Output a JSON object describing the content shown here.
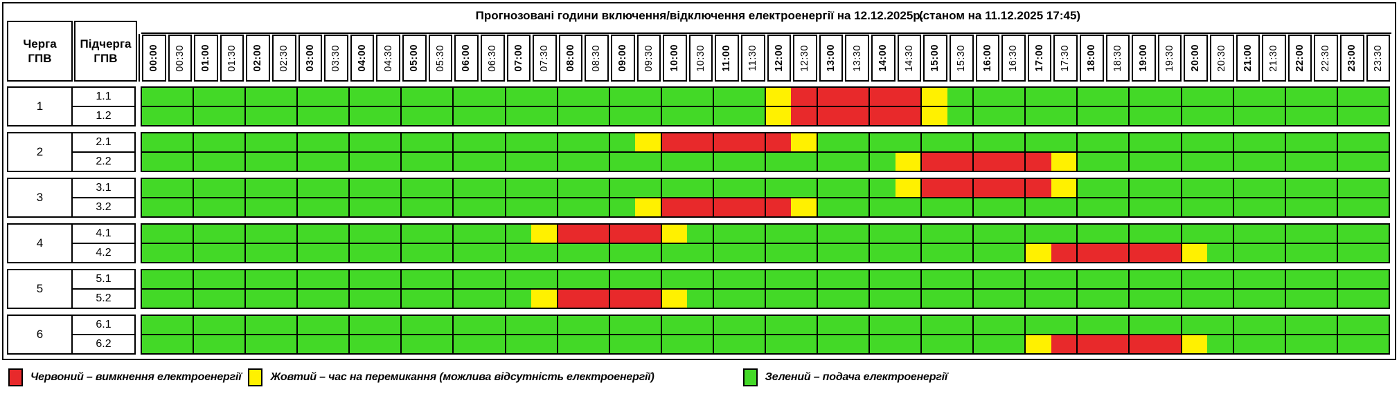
{
  "title": {
    "main": "Прогнозовані години включення/відключення електроенергії на 12.12.2025р.",
    "asof": "(станом на 11.12.2025 17:45)"
  },
  "corner": {
    "queue_header": "Черга\nГПВ",
    "subqueue_header": "Підчерга\nГПВ"
  },
  "colors": {
    "on": "#43D927",
    "switching": "#FFF100",
    "off": "#E8292B"
  },
  "legend": [
    {
      "state": "R",
      "color": "#E8292B",
      "label": "Червоний – вимкнення електроенергії"
    },
    {
      "state": "Y",
      "color": "#FFF100",
      "label": "Жовтий – час на перемикання (можлива відсутність електроенергії)"
    },
    {
      "state": "G",
      "color": "#43D927",
      "label": "Зелений – подача електроенергії"
    }
  ],
  "chart_data": {
    "type": "heatmap",
    "title": "Прогнозовані години включення/відключення електроенергії на 12.12.2025р. (станом на 11.12.2025 17:45)",
    "x": [
      "00:00",
      "00:30",
      "01:00",
      "01:30",
      "02:00",
      "02:30",
      "03:00",
      "03:30",
      "04:00",
      "04:30",
      "05:00",
      "05:30",
      "06:00",
      "06:30",
      "07:00",
      "07:30",
      "08:00",
      "08:30",
      "09:00",
      "09:30",
      "10:00",
      "10:30",
      "11:00",
      "11:30",
      "12:00",
      "12:30",
      "13:00",
      "13:30",
      "14:00",
      "14:30",
      "15:00",
      "15:30",
      "16:00",
      "16:30",
      "17:00",
      "17:30",
      "18:00",
      "18:30",
      "19:00",
      "19:30",
      "20:00",
      "20:30",
      "21:00",
      "21:30",
      "22:00",
      "22:30",
      "23:00",
      "23:30"
    ],
    "state_legend": {
      "G": "подача електроенергії",
      "Y": "час на перемикання (можлива відсутність електроенергії)",
      "R": "вимкнення електроенергії"
    },
    "rows": [
      {
        "queue": "1",
        "subqueue": "1.1",
        "states": "GGGGGGGGGGGGGGGGGGGGGGGGYRRRRRYGGGGGGGGGGGGGGGGG"
      },
      {
        "queue": "1",
        "subqueue": "1.2",
        "states": "GGGGGGGGGGGGGGGGGGGGGGGGYRRRRRYGGGGGGGGGGGGGGGGG"
      },
      {
        "queue": "2",
        "subqueue": "2.1",
        "states": "GGGGGGGGGGGGGGGGGGGYRRRRRYGGGGGGGGGGGGGGGGGGGGGG"
      },
      {
        "queue": "2",
        "subqueue": "2.2",
        "states": "GGGGGGGGGGGGGGGGGGGGGGGGGGGGGYRRRRRYGGGGGGGGGGGG"
      },
      {
        "queue": "3",
        "subqueue": "3.1",
        "states": "GGGGGGGGGGGGGGGGGGGGGGGGGGGGGYRRRRRYGGGGGGGGGGGG"
      },
      {
        "queue": "3",
        "subqueue": "3.2",
        "states": "GGGGGGGGGGGGGGGGGGGYRRRRRYGGGGGGGGGGGGGGGGGGGGGG"
      },
      {
        "queue": "4",
        "subqueue": "4.1",
        "states": "GGGGGGGGGGGGGGGYRRRRYGGGGGGGGGGGGGGGGGGGGGGGGGGG"
      },
      {
        "queue": "4",
        "subqueue": "4.2",
        "states": "GGGGGGGGGGGGGGGGGGGGGGGGGGGGGGGGGGYRRRRRYGGGGGGG"
      },
      {
        "queue": "5",
        "subqueue": "5.1",
        "states": "GGGGGGGGGGGGGGGGGGGGGGGGGGGGGGGGGGGGGGGGGGGGGGGG"
      },
      {
        "queue": "5",
        "subqueue": "5.2",
        "states": "GGGGGGGGGGGGGGGYRRRRYGGGGGGGGGGGGGGGGGGGGGGGGGGG"
      },
      {
        "queue": "6",
        "subqueue": "6.1",
        "states": "GGGGGGGGGGGGGGGGGGGGGGGGGGGGGGGGGGGGGGGGGGGGGGGG"
      },
      {
        "queue": "6",
        "subqueue": "6.2",
        "states": "GGGGGGGGGGGGGGGGGGGGGGGGGGGGGGGGGGYRRRRRYGGGGGGG"
      }
    ]
  }
}
